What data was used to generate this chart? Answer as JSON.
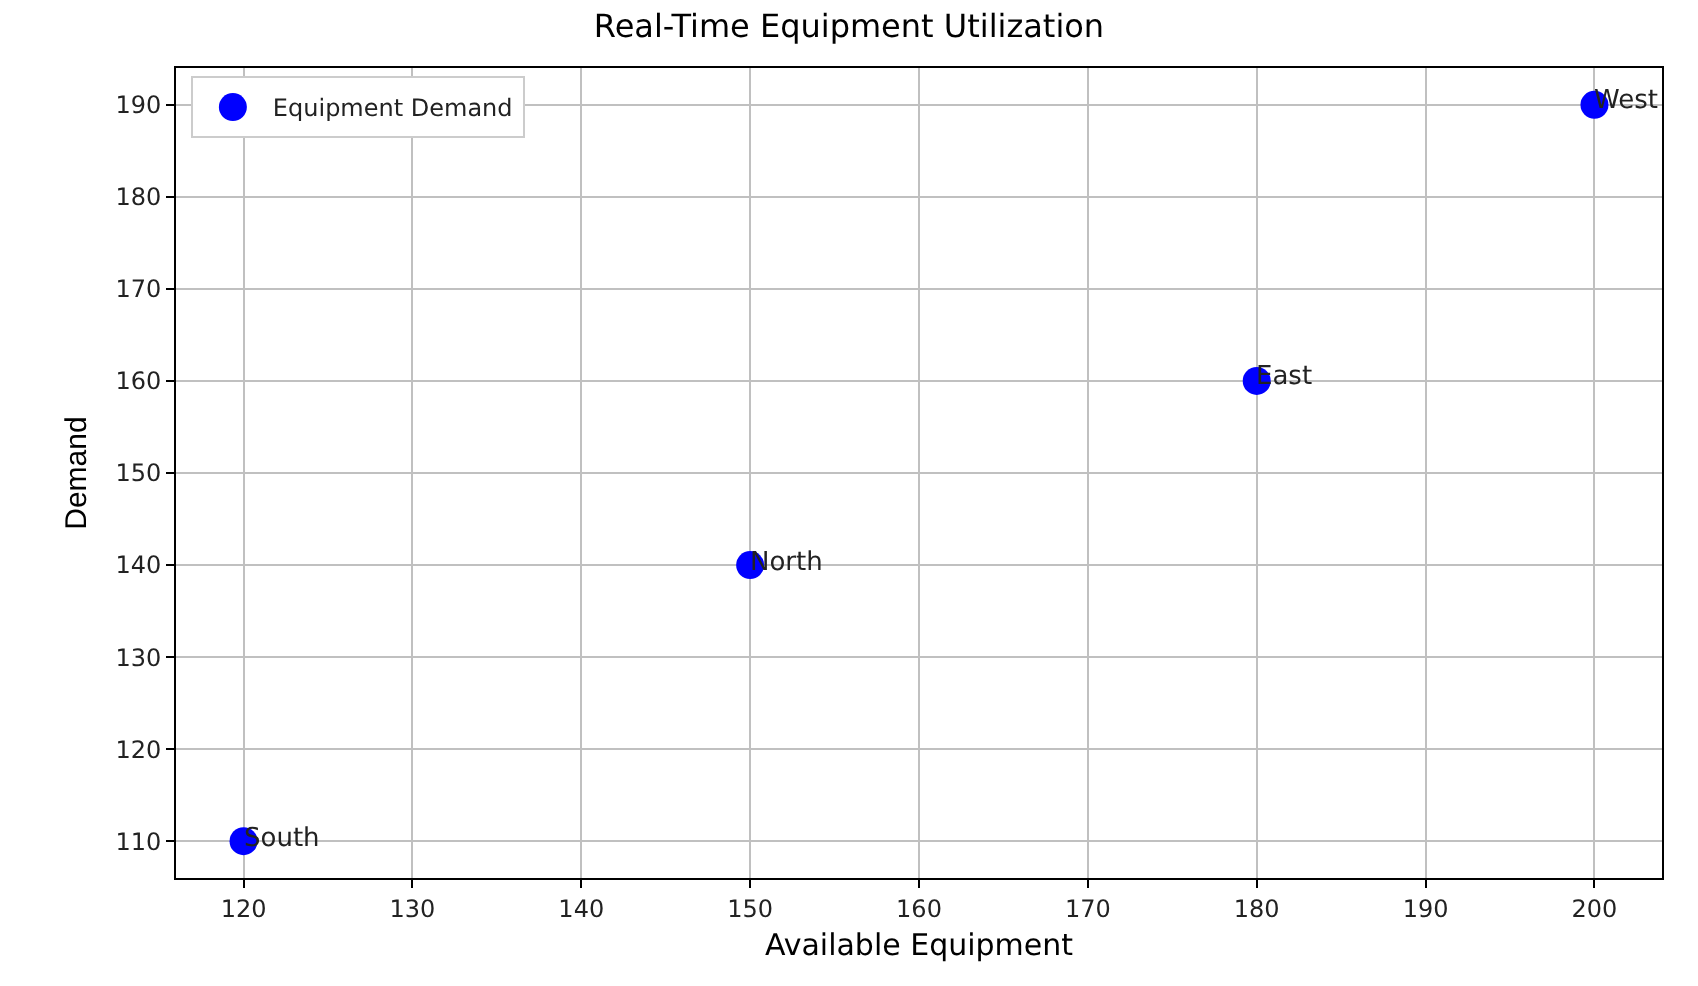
{
  "chart_data": {
    "type": "scatter",
    "title": "Real-Time Equipment Utilization",
    "xlabel": "Available Equipment",
    "ylabel": "Demand",
    "series": [
      {
        "name": "Equipment Demand",
        "color": "#0000ff",
        "x": [
          120,
          150,
          180,
          200
        ],
        "values": [
          110,
          140,
          160,
          190
        ]
      }
    ],
    "annotations": [
      {
        "text": "South",
        "x": 120,
        "y": 110
      },
      {
        "text": "North",
        "x": 150,
        "y": 140
      },
      {
        "text": "East",
        "x": 180,
        "y": 160
      },
      {
        "text": "West",
        "x": 200,
        "y": 190
      }
    ],
    "xlim": [
      116,
      204
    ],
    "xticks": [
      120,
      130,
      140,
      150,
      160,
      170,
      180,
      190,
      200
    ],
    "ylim": [
      106,
      194
    ],
    "yticks": [
      110,
      120,
      130,
      140,
      150,
      160,
      170,
      180,
      190
    ],
    "grid": true,
    "legend": "top left",
    "marker": "circle"
  }
}
